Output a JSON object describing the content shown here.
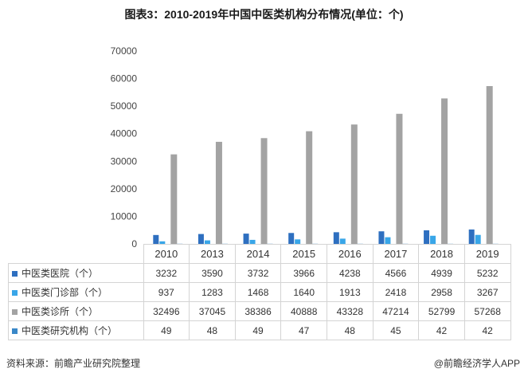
{
  "title": "图表3：2010-2019年中国中医类机构分布情况(单位：个)",
  "source_text": "资料来源：前瞻产业研究院整理",
  "brand_text": "@前瞻经济学人APP",
  "chart_data": {
    "type": "bar",
    "title": "图表3：2010-2019年中国中医类机构分布情况(单位：个)",
    "xlabel": "",
    "ylabel": "",
    "ylim": [
      0,
      70000
    ],
    "yticks": [
      0,
      10000,
      20000,
      30000,
      40000,
      50000,
      60000,
      70000
    ],
    "grid": false,
    "legend": "table-left",
    "categories": [
      "2010",
      "2013",
      "2014",
      "2015",
      "2016",
      "2017",
      "2018",
      "2019"
    ],
    "series": [
      {
        "name": "中医类医院（个）",
        "color": "#2e6fc0",
        "values": [
          3232,
          3590,
          3732,
          3966,
          4238,
          4566,
          4939,
          5232
        ]
      },
      {
        "name": "中医类门诊部（个）",
        "color": "#39a6e8",
        "values": [
          937,
          1283,
          1468,
          1640,
          1913,
          2418,
          2958,
          3267
        ]
      },
      {
        "name": "中医类诊所（个）",
        "color": "#a3a3a3",
        "values": [
          32496,
          37045,
          38386,
          40888,
          43328,
          47214,
          52799,
          57268
        ]
      },
      {
        "name": "中医类研究机构（个）",
        "color": "#3a88c8",
        "values": [
          49,
          48,
          49,
          47,
          48,
          45,
          42,
          42
        ]
      }
    ]
  }
}
